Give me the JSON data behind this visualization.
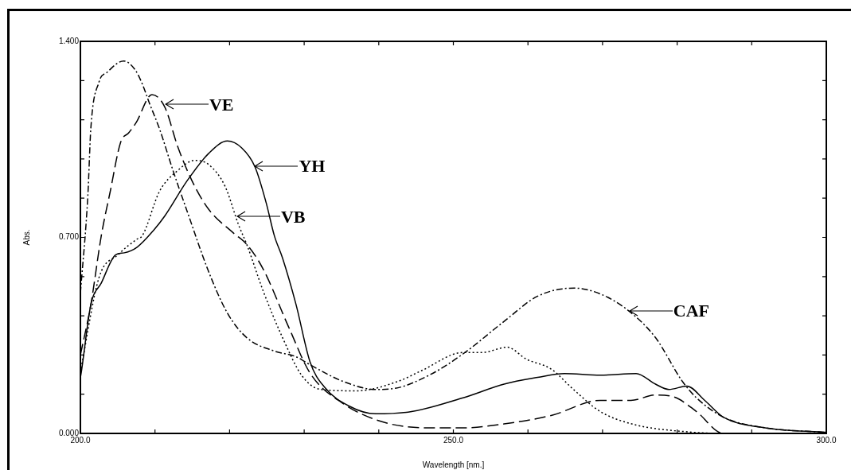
{
  "chart_data": {
    "type": "line",
    "xlabel": "Wavelength [nm.]",
    "ylabel": "Abs.",
    "xlim": [
      200,
      300
    ],
    "xticks": [
      {
        "value": 200,
        "label": "200.0"
      },
      {
        "value": 210,
        "label": null
      },
      {
        "value": 220,
        "label": null
      },
      {
        "value": 230,
        "label": null
      },
      {
        "value": 240,
        "label": null
      },
      {
        "value": 250,
        "label": "250.0"
      },
      {
        "value": 260,
        "label": null
      },
      {
        "value": 270,
        "label": null
      },
      {
        "value": 280,
        "label": null
      },
      {
        "value": 290,
        "label": null
      },
      {
        "value": 300,
        "label": "300.0"
      }
    ],
    "ylim": [
      0,
      1.4
    ],
    "yticks": [
      {
        "value": 0,
        "label": "0.000"
      },
      {
        "value": 0.14,
        "label": null
      },
      {
        "value": 0.28,
        "label": null
      },
      {
        "value": 0.42,
        "label": null
      },
      {
        "value": 0.56,
        "label": null
      },
      {
        "value": 0.7,
        "label": "0.700"
      },
      {
        "value": 0.84,
        "label": null
      },
      {
        "value": 0.98,
        "label": null
      },
      {
        "value": 1.12,
        "label": null
      },
      {
        "value": 1.26,
        "label": null
      },
      {
        "value": 1.4,
        "label": "1.400"
      }
    ],
    "legend": false,
    "marker": "none",
    "series": [
      {
        "color": "#000000",
        "line_style": "solid",
        "x": [
          200,
          200.1,
          201.4,
          202.8,
          204.7,
          205.9,
          207.6,
          209.8,
          211.3,
          214.3,
          217.2,
          219.7,
          221.6,
          223.4,
          224.9,
          226,
          227.1,
          228.9,
          230.8,
          232.7,
          236,
          239.6,
          244.4,
          251.3,
          256.8,
          261.3,
          264.9,
          269.7,
          274.5,
          277.1,
          278.9,
          281.3,
          283.7,
          286.2,
          291.8,
          300
        ],
        "values": [
          0.2,
          0.215,
          0.46,
          0.537,
          0.637,
          0.645,
          0.665,
          0.725,
          0.776,
          0.902,
          1.0,
          1.044,
          1.02,
          0.952,
          0.824,
          0.706,
          0.626,
          0.461,
          0.254,
          0.166,
          0.098,
          0.07,
          0.078,
          0.127,
          0.176,
          0.2,
          0.214,
          0.208,
          0.214,
          0.176,
          0.157,
          0.169,
          0.118,
          0.058,
          0.02,
          0.004
        ]
      },
      {
        "color": "#000000",
        "line_style": "dashed",
        "x": [
          200,
          201.4,
          202.8,
          204,
          205.4,
          206.5,
          207.6,
          209.1,
          209.6,
          211.3,
          213.1,
          215,
          217.2,
          220.5,
          222.3,
          224.5,
          227.9,
          230.8,
          235.2,
          240.8,
          246.9,
          251.3,
          256.8,
          263.1,
          269.7,
          273.8,
          277.1,
          279.6,
          282.6,
          286.2,
          300
        ],
        "values": [
          0.28,
          0.46,
          0.706,
          0.864,
          1.04,
          1.074,
          1.116,
          1.2,
          1.21,
          1.166,
          1.02,
          0.9,
          0.8,
          0.716,
          0.675,
          0.587,
          0.381,
          0.215,
          0.107,
          0.039,
          0.02,
          0.02,
          0.034,
          0.064,
          0.118,
          0.118,
          0.137,
          0.13,
          0.078,
          0,
          0
        ]
      },
      {
        "color": "#000000",
        "line_style": "dotted",
        "x": [
          200,
          202.5,
          205,
          207.6,
          208.3,
          210.6,
          213.1,
          215.3,
          217.2,
          219.4,
          221.2,
          222.3,
          224.5,
          227.1,
          229.7,
          232.2,
          237,
          242.6,
          245.8,
          251.3,
          253.9,
          257.2,
          259.8,
          263.1,
          266.1,
          269.7,
          274.5,
          279.6,
          286.2,
          300
        ],
        "values": [
          0.22,
          0.557,
          0.637,
          0.694,
          0.706,
          0.864,
          0.94,
          0.975,
          0.96,
          0.882,
          0.745,
          0.675,
          0.509,
          0.342,
          0.206,
          0.157,
          0.152,
          0.186,
          0.225,
          0.289,
          0.289,
          0.308,
          0.265,
          0.23,
          0.157,
          0.078,
          0.03,
          0.01,
          0,
          0
        ]
      },
      {
        "color": "#000000",
        "line_style": "dashdot",
        "x": [
          200,
          201,
          201.4,
          202.5,
          203.6,
          205.8,
          207.3,
          208.2,
          209.3,
          210.6,
          212.4,
          214.3,
          217.2,
          219.7,
          222.3,
          226,
          228.9,
          230.8,
          235.2,
          239.6,
          242.2,
          246.9,
          251.3,
          256.8,
          261.3,
          266.2,
          269.7,
          273.4,
          277.1,
          280.7,
          282.6,
          286.2,
          291.8,
          300
        ],
        "values": [
          0.5,
          0.85,
          1.09,
          1.255,
          1.29,
          1.33,
          1.3,
          1.254,
          1.176,
          1.088,
          0.94,
          0.794,
          0.577,
          0.43,
          0.342,
          0.294,
          0.274,
          0.245,
          0.186,
          0.157,
          0.161,
          0.21,
          0.284,
          0.4,
          0.49,
          0.519,
          0.498,
          0.44,
          0.342,
          0.186,
          0.127,
          0.058,
          0.02,
          0.004
        ]
      }
    ],
    "annotations": [
      {
        "text": "VE",
        "x": 211.2,
        "y": 1.176
      },
      {
        "text": "YH",
        "x": 223.2,
        "y": 0.955
      },
      {
        "text": "VB",
        "x": 220.8,
        "y": 0.775
      },
      {
        "text": "CAF",
        "x": 273.4,
        "y": 0.438
      }
    ]
  }
}
